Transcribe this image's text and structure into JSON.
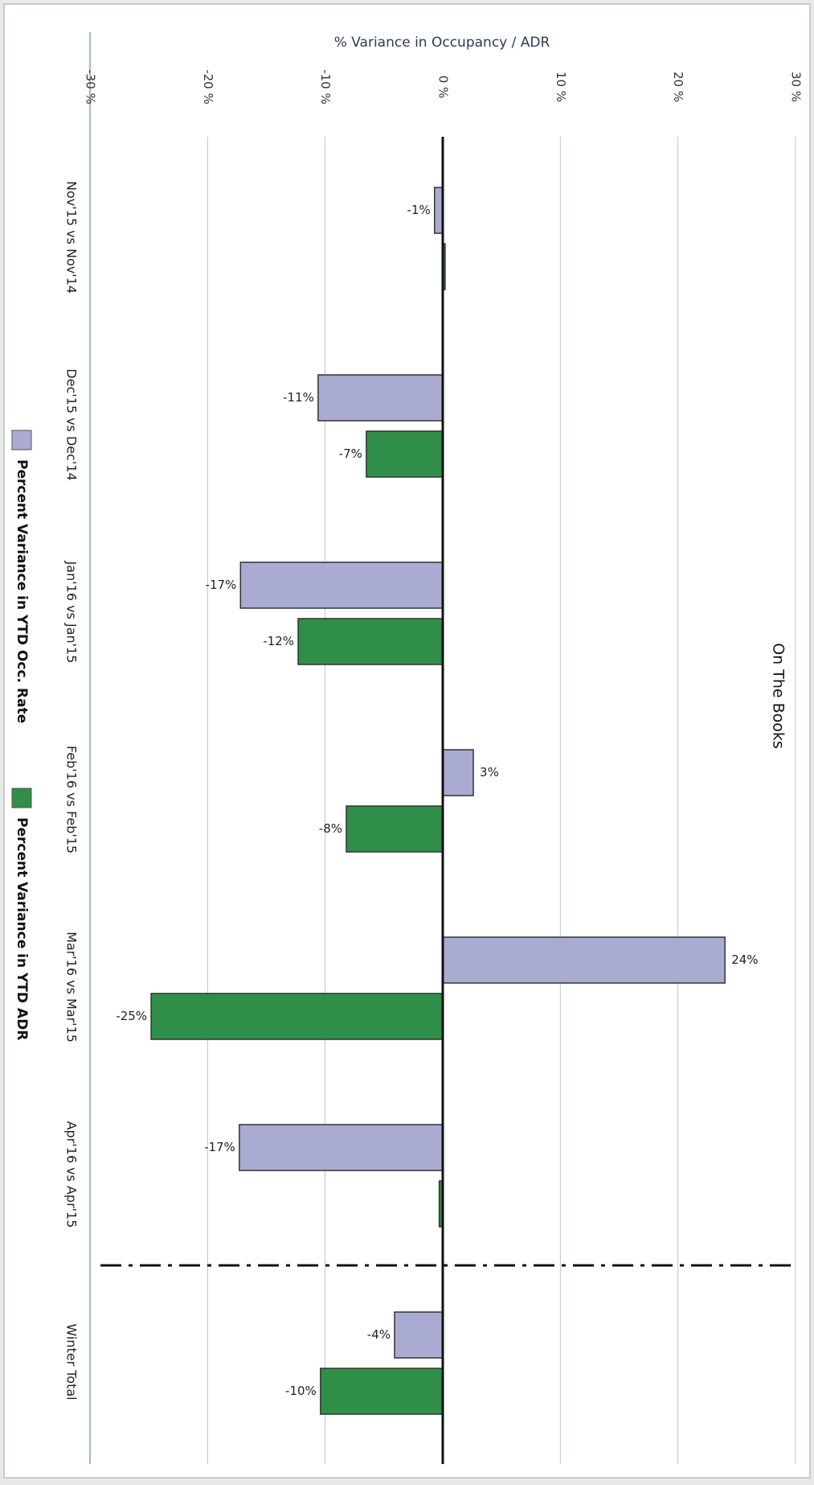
{
  "chart_data": {
    "type": "bar",
    "orientation": "horizontal",
    "title": "On The Books",
    "value_axis_label": "% Variance in Occupancy / ADR",
    "xlim": [
      -30,
      30
    ],
    "ticks": [
      -30,
      -20,
      -10,
      0,
      10,
      20,
      30
    ],
    "tick_labels": [
      "-30 %",
      "-20 %",
      "-10 %",
      "0 %",
      "10 %",
      "20 %",
      "30 %"
    ],
    "grid": true,
    "legend_position": "bottom",
    "categories": [
      "Nov'15 vs Nov'14",
      "Dec'15 vs Dec'14",
      "Jan'16 vs Jan'15",
      "Feb'16 vs Feb'15",
      "Mar'16 vs Mar'15",
      "Apr'16 vs Apr'15",
      "Winter Total"
    ],
    "separator_before_category": "Winter Total",
    "series": [
      {
        "name": "Percent Variance in YTD Occ. Rate",
        "color": "#a9abd2",
        "values": [
          -0.7,
          -10.6,
          -17.2,
          2.6,
          24.0,
          -17.3,
          -4.1
        ],
        "labels": [
          "-1%",
          "-11%",
          "-17%",
          "3%",
          "24%",
          "-17%",
          "-4%"
        ]
      },
      {
        "name": "Percent Variance in YTD ADR",
        "color": "#2f8f48",
        "values": [
          0.2,
          -6.5,
          -12.3,
          -8.2,
          -24.8,
          -0.3,
          -10.4
        ],
        "labels": [
          "",
          "-7%",
          "-12%",
          "-8%",
          "-25%",
          "",
          "-10%"
        ]
      }
    ]
  }
}
